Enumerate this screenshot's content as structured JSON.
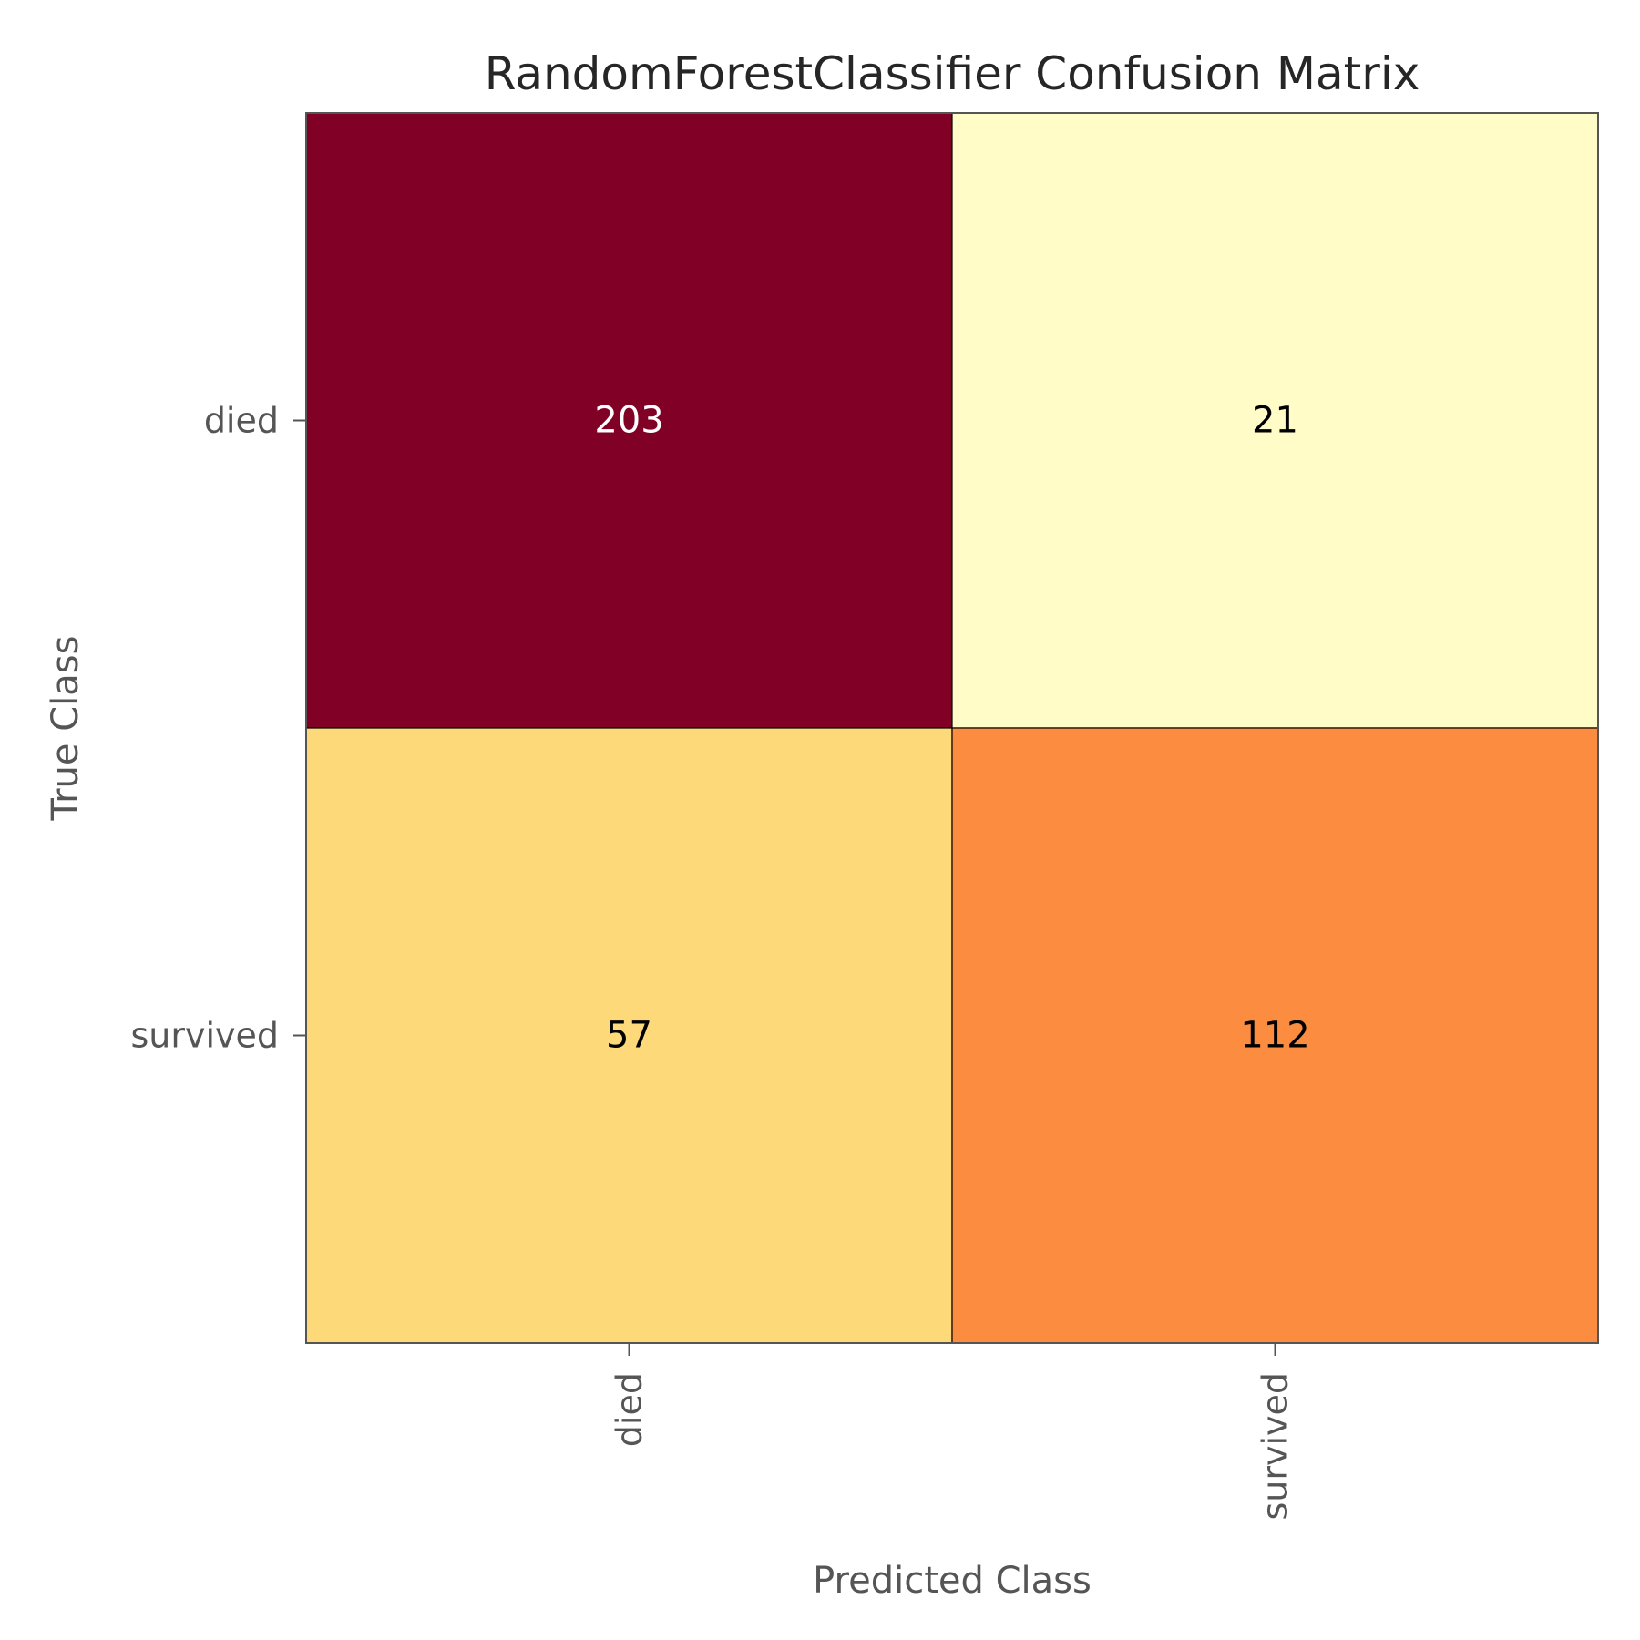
{
  "chart_data": {
    "type": "heatmap",
    "title": "RandomForestClassifier Confusion Matrix",
    "xlabel": "Predicted Class",
    "ylabel": "True Class",
    "x_categories": [
      "died",
      "survived"
    ],
    "y_categories": [
      "died",
      "survived"
    ],
    "values": [
      [
        203,
        21
      ],
      [
        57,
        112
      ]
    ],
    "cell_colors": [
      [
        "#800026",
        "#FFFCC8"
      ],
      [
        "#FDD979",
        "#FC8C3F"
      ]
    ],
    "text_colors": [
      [
        "#FFFFFF",
        "#000000"
      ],
      [
        "#000000",
        "#000000"
      ]
    ],
    "colormap": "YlOrRd",
    "grid": false,
    "legend": "none"
  }
}
